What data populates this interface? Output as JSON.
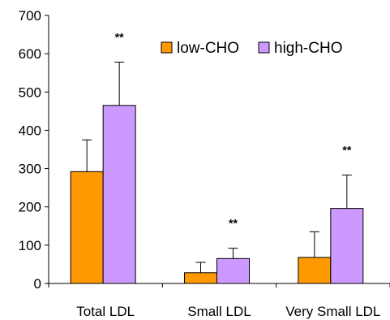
{
  "chart_data": {
    "type": "bar",
    "title": "",
    "xlabel": "",
    "ylabel": "",
    "categories": [
      "Total LDL",
      "Small LDL",
      "Very Small LDL"
    ],
    "series": [
      {
        "name": "low-CHO",
        "color": "#ff9900",
        "values": [
          292,
          28,
          68
        ],
        "errors": [
          83,
          27,
          67
        ]
      },
      {
        "name": "high-CHO",
        "color": "#cc99ff",
        "values": [
          465,
          65,
          196
        ],
        "errors": [
          113,
          27,
          87
        ]
      }
    ],
    "yticks": [
      "0",
      "100",
      "200",
      "300",
      "400",
      "500",
      "600",
      "700"
    ],
    "ylim": [
      0,
      700
    ],
    "annotations": [
      "**",
      "**",
      "**"
    ],
    "grid": false,
    "legend_position": "top-right"
  }
}
